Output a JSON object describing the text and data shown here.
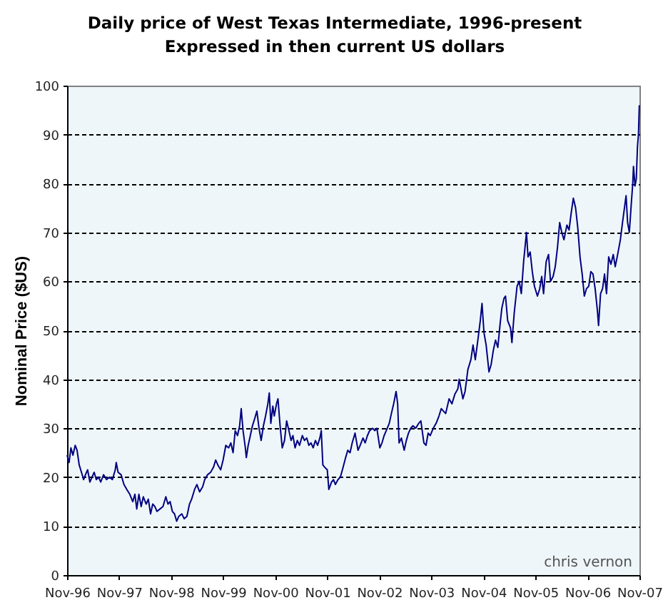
{
  "chart_data": {
    "type": "line",
    "title": "Daily price of West Texas Intermediate, 1996-present",
    "subtitle": "Expressed in then current US dollars",
    "ylabel": "Nominal Price ($US)",
    "x": [
      "1996-11-01",
      "1996-11-15",
      "1996-11-28",
      "1996-12-12",
      "1996-12-28",
      "1997-01-10",
      "1997-01-25",
      "1997-02-10",
      "1997-02-25",
      "1997-03-10",
      "1997-03-25",
      "1997-04-10",
      "1997-04-25",
      "1997-05-10",
      "1997-05-25",
      "1997-06-10",
      "1997-06-25",
      "1997-07-15",
      "1997-08-05",
      "1997-08-25",
      "1997-09-15",
      "1997-10-05",
      "1997-10-12",
      "1997-10-25",
      "1997-11-15",
      "1997-12-05",
      "1997-12-25",
      "1998-01-15",
      "1998-02-05",
      "1998-02-20",
      "1998-03-05",
      "1998-03-20",
      "1998-04-05",
      "1998-04-20",
      "1998-05-10",
      "1998-05-25",
      "1998-06-10",
      "1998-06-25",
      "1998-07-10",
      "1998-07-25",
      "1998-08-15",
      "1998-09-05",
      "1998-09-25",
      "1998-10-10",
      "1998-10-25",
      "1998-11-10",
      "1998-11-25",
      "1998-12-10",
      "1998-12-25",
      "1999-01-15",
      "1999-02-01",
      "1999-02-20",
      "1999-03-10",
      "1999-03-25",
      "1999-04-15",
      "1999-05-01",
      "1999-05-20",
      "1999-06-10",
      "1999-06-25",
      "1999-07-15",
      "1999-08-05",
      "1999-08-25",
      "1999-09-10",
      "1999-09-25",
      "1999-10-15",
      "1999-11-01",
      "1999-11-20",
      "1999-12-10",
      "1999-12-25",
      "2000-01-10",
      "2000-01-25",
      "2000-02-10",
      "2000-02-25",
      "2000-03-07",
      "2000-03-20",
      "2000-04-05",
      "2000-04-12",
      "2000-04-25",
      "2000-05-10",
      "2000-05-25",
      "2000-06-10",
      "2000-06-25",
      "2000-07-10",
      "2000-07-25",
      "2000-08-10",
      "2000-08-25",
      "2000-09-10",
      "2000-09-20",
      "2000-10-01",
      "2000-10-15",
      "2000-10-25",
      "2000-11-10",
      "2000-11-20",
      "2000-12-05",
      "2000-12-20",
      "2001-01-05",
      "2001-01-20",
      "2001-02-05",
      "2001-02-20",
      "2001-03-05",
      "2001-03-20",
      "2001-04-05",
      "2001-04-20",
      "2001-05-10",
      "2001-05-25",
      "2001-06-10",
      "2001-06-25",
      "2001-07-10",
      "2001-07-25",
      "2001-08-10",
      "2001-08-25",
      "2001-09-10",
      "2001-09-20",
      "2001-10-01",
      "2001-10-15",
      "2001-11-01",
      "2001-11-12",
      "2001-12-01",
      "2001-12-15",
      "2001-12-28",
      "2002-01-15",
      "2002-02-01",
      "2002-02-20",
      "2002-03-10",
      "2002-03-25",
      "2002-04-10",
      "2002-04-25",
      "2002-05-15",
      "2002-06-05",
      "2002-06-20",
      "2002-07-10",
      "2002-07-25",
      "2002-08-10",
      "2002-08-25",
      "2002-09-15",
      "2002-10-01",
      "2002-10-15",
      "2002-11-05",
      "2002-11-20",
      "2002-12-05",
      "2002-12-20",
      "2003-01-10",
      "2003-01-25",
      "2003-02-10",
      "2003-02-27",
      "2003-03-10",
      "2003-03-20",
      "2003-04-05",
      "2003-04-25",
      "2003-05-10",
      "2003-05-25",
      "2003-06-10",
      "2003-06-25",
      "2003-07-15",
      "2003-08-05",
      "2003-08-20",
      "2003-09-10",
      "2003-09-25",
      "2003-10-10",
      "2003-10-25",
      "2003-11-15",
      "2003-12-05",
      "2003-12-25",
      "2004-01-10",
      "2004-01-25",
      "2004-02-10",
      "2004-03-05",
      "2004-03-25",
      "2004-04-15",
      "2004-05-05",
      "2004-05-15",
      "2004-06-10",
      "2004-06-25",
      "2004-07-15",
      "2004-08-05",
      "2004-08-20",
      "2004-09-05",
      "2004-09-25",
      "2004-10-10",
      "2004-10-22",
      "2004-11-05",
      "2004-11-20",
      "2004-12-10",
      "2004-12-25",
      "2005-01-10",
      "2005-01-25",
      "2005-02-10",
      "2005-02-25",
      "2005-03-10",
      "2005-03-25",
      "2005-04-05",
      "2005-04-20",
      "2005-05-10",
      "2005-05-20",
      "2005-06-05",
      "2005-06-25",
      "2005-07-10",
      "2005-07-25",
      "2005-08-10",
      "2005-08-30",
      "2005-09-10",
      "2005-09-25",
      "2005-10-10",
      "2005-10-25",
      "2005-11-15",
      "2005-12-01",
      "2005-12-15",
      "2005-12-28",
      "2006-01-15",
      "2006-02-01",
      "2006-02-15",
      "2006-03-05",
      "2006-03-20",
      "2006-04-05",
      "2006-04-20",
      "2006-05-05",
      "2006-05-20",
      "2006-06-10",
      "2006-06-25",
      "2006-07-10",
      "2006-07-25",
      "2006-08-10",
      "2006-08-25",
      "2006-09-10",
      "2006-09-25",
      "2006-10-10",
      "2006-10-25",
      "2006-11-10",
      "2006-11-25",
      "2006-12-10",
      "2006-12-25",
      "2007-01-10",
      "2007-01-18",
      "2007-02-01",
      "2007-02-15",
      "2007-03-01",
      "2007-03-15",
      "2007-03-30",
      "2007-04-15",
      "2007-05-01",
      "2007-05-15",
      "2007-06-01",
      "2007-06-20",
      "2007-07-05",
      "2007-07-30",
      "2007-08-10",
      "2007-08-22",
      "2007-09-05",
      "2007-09-15",
      "2007-09-20",
      "2007-10-01",
      "2007-10-10",
      "2007-10-18",
      "2007-10-25",
      "2007-10-31"
    ],
    "series": [
      {
        "color": "#000080",
        "values": [
          24.5,
          23.0,
          26.0,
          24.5,
          26.5,
          25.5,
          22.5,
          21.0,
          19.5,
          20.5,
          21.5,
          19.0,
          20.0,
          21.0,
          19.5,
          20.0,
          19.0,
          20.5,
          19.5,
          20.0,
          19.5,
          21.5,
          23.0,
          21.0,
          20.5,
          18.5,
          17.5,
          16.5,
          15.0,
          16.5,
          13.5,
          16.5,
          14.0,
          16.0,
          14.5,
          15.5,
          12.5,
          14.5,
          14.0,
          13.0,
          13.5,
          14.0,
          16.0,
          14.5,
          15.0,
          13.0,
          12.5,
          11.0,
          12.0,
          12.5,
          11.5,
          12.0,
          14.5,
          15.5,
          17.5,
          18.5,
          17.0,
          18.0,
          19.5,
          20.5,
          21.0,
          22.0,
          23.5,
          22.5,
          21.5,
          23.5,
          26.5,
          26.0,
          27.0,
          25.0,
          29.5,
          28.5,
          30.5,
          34.0,
          29.5,
          26.0,
          24.0,
          26.5,
          28.5,
          30.5,
          32.0,
          33.5,
          30.0,
          27.5,
          30.5,
          32.5,
          35.0,
          37.2,
          31.0,
          34.5,
          32.5,
          35.0,
          36.0,
          30.5,
          26.0,
          27.5,
          31.5,
          29.5,
          27.5,
          28.5,
          26.0,
          27.5,
          26.5,
          28.5,
          27.5,
          28.0,
          26.5,
          27.0,
          26.0,
          27.5,
          26.5,
          28.0,
          29.5,
          22.5,
          22.0,
          21.5,
          17.5,
          19.0,
          19.5,
          18.5,
          19.5,
          20.0,
          22.0,
          24.0,
          25.5,
          25.0,
          27.0,
          29.0,
          25.5,
          26.5,
          28.0,
          27.0,
          28.5,
          29.5,
          30.0,
          29.5,
          30.0,
          26.0,
          27.0,
          28.5,
          29.5,
          31.0,
          33.0,
          35.0,
          37.5,
          35.0,
          27.0,
          28.0,
          25.5,
          27.5,
          29.0,
          30.0,
          30.5,
          30.0,
          31.0,
          31.5,
          27.0,
          26.5,
          29.0,
          28.5,
          30.0,
          31.0,
          32.5,
          34.0,
          33.5,
          33.0,
          36.0,
          35.0,
          37.0,
          38.0,
          40.0,
          36.0,
          37.5,
          42.0,
          44.0,
          47.0,
          44.0,
          48.5,
          52.0,
          55.5,
          49.5,
          47.0,
          41.5,
          43.0,
          46.0,
          48.0,
          46.5,
          51.0,
          54.5,
          56.5,
          57.0,
          52.0,
          50.5,
          47.5,
          53.5,
          59.0,
          60.0,
          57.5,
          64.0,
          70.0,
          65.0,
          66.0,
          62.0,
          59.0,
          57.0,
          58.5,
          61.0,
          57.5,
          64.0,
          65.5,
          60.0,
          61.0,
          63.0,
          67.0,
          72.0,
          70.0,
          68.5,
          71.5,
          70.5,
          74.0,
          77.0,
          75.0,
          71.0,
          65.0,
          61.5,
          57.0,
          58.5,
          59.0,
          62.0,
          61.5,
          58.5,
          54.0,
          51.0,
          57.5,
          58.5,
          61.5,
          57.5,
          65.0,
          63.5,
          65.5,
          63.0,
          65.5,
          68.5,
          72.0,
          77.5,
          72.0,
          70.0,
          76.0,
          80.0,
          83.5,
          79.5,
          81.0,
          87.5,
          90.0,
          96.0
        ]
      }
    ],
    "xlim": [
      "1996-11-01",
      "2007-11-01"
    ],
    "xticks": [
      {
        "value": "1996-11-01",
        "label": "Nov-96"
      },
      {
        "value": "1997-11-01",
        "label": "Nov-97"
      },
      {
        "value": "1998-11-01",
        "label": "Nov-98"
      },
      {
        "value": "1999-11-01",
        "label": "Nov-99"
      },
      {
        "value": "2000-11-01",
        "label": "Nov-00"
      },
      {
        "value": "2001-11-01",
        "label": "Nov-01"
      },
      {
        "value": "2002-11-01",
        "label": "Nov-02"
      },
      {
        "value": "2003-11-01",
        "label": "Nov-03"
      },
      {
        "value": "2004-11-01",
        "label": "Nov-04"
      },
      {
        "value": "2005-11-01",
        "label": "Nov-05"
      },
      {
        "value": "2006-11-01",
        "label": "Nov-06"
      },
      {
        "value": "2007-11-01",
        "label": "Nov-07"
      }
    ],
    "ylim": [
      0,
      100
    ],
    "yticks": [
      0,
      10,
      20,
      30,
      40,
      50,
      60,
      70,
      80,
      90,
      100
    ],
    "grid": "y",
    "annotations": [
      "chris vernon"
    ]
  }
}
